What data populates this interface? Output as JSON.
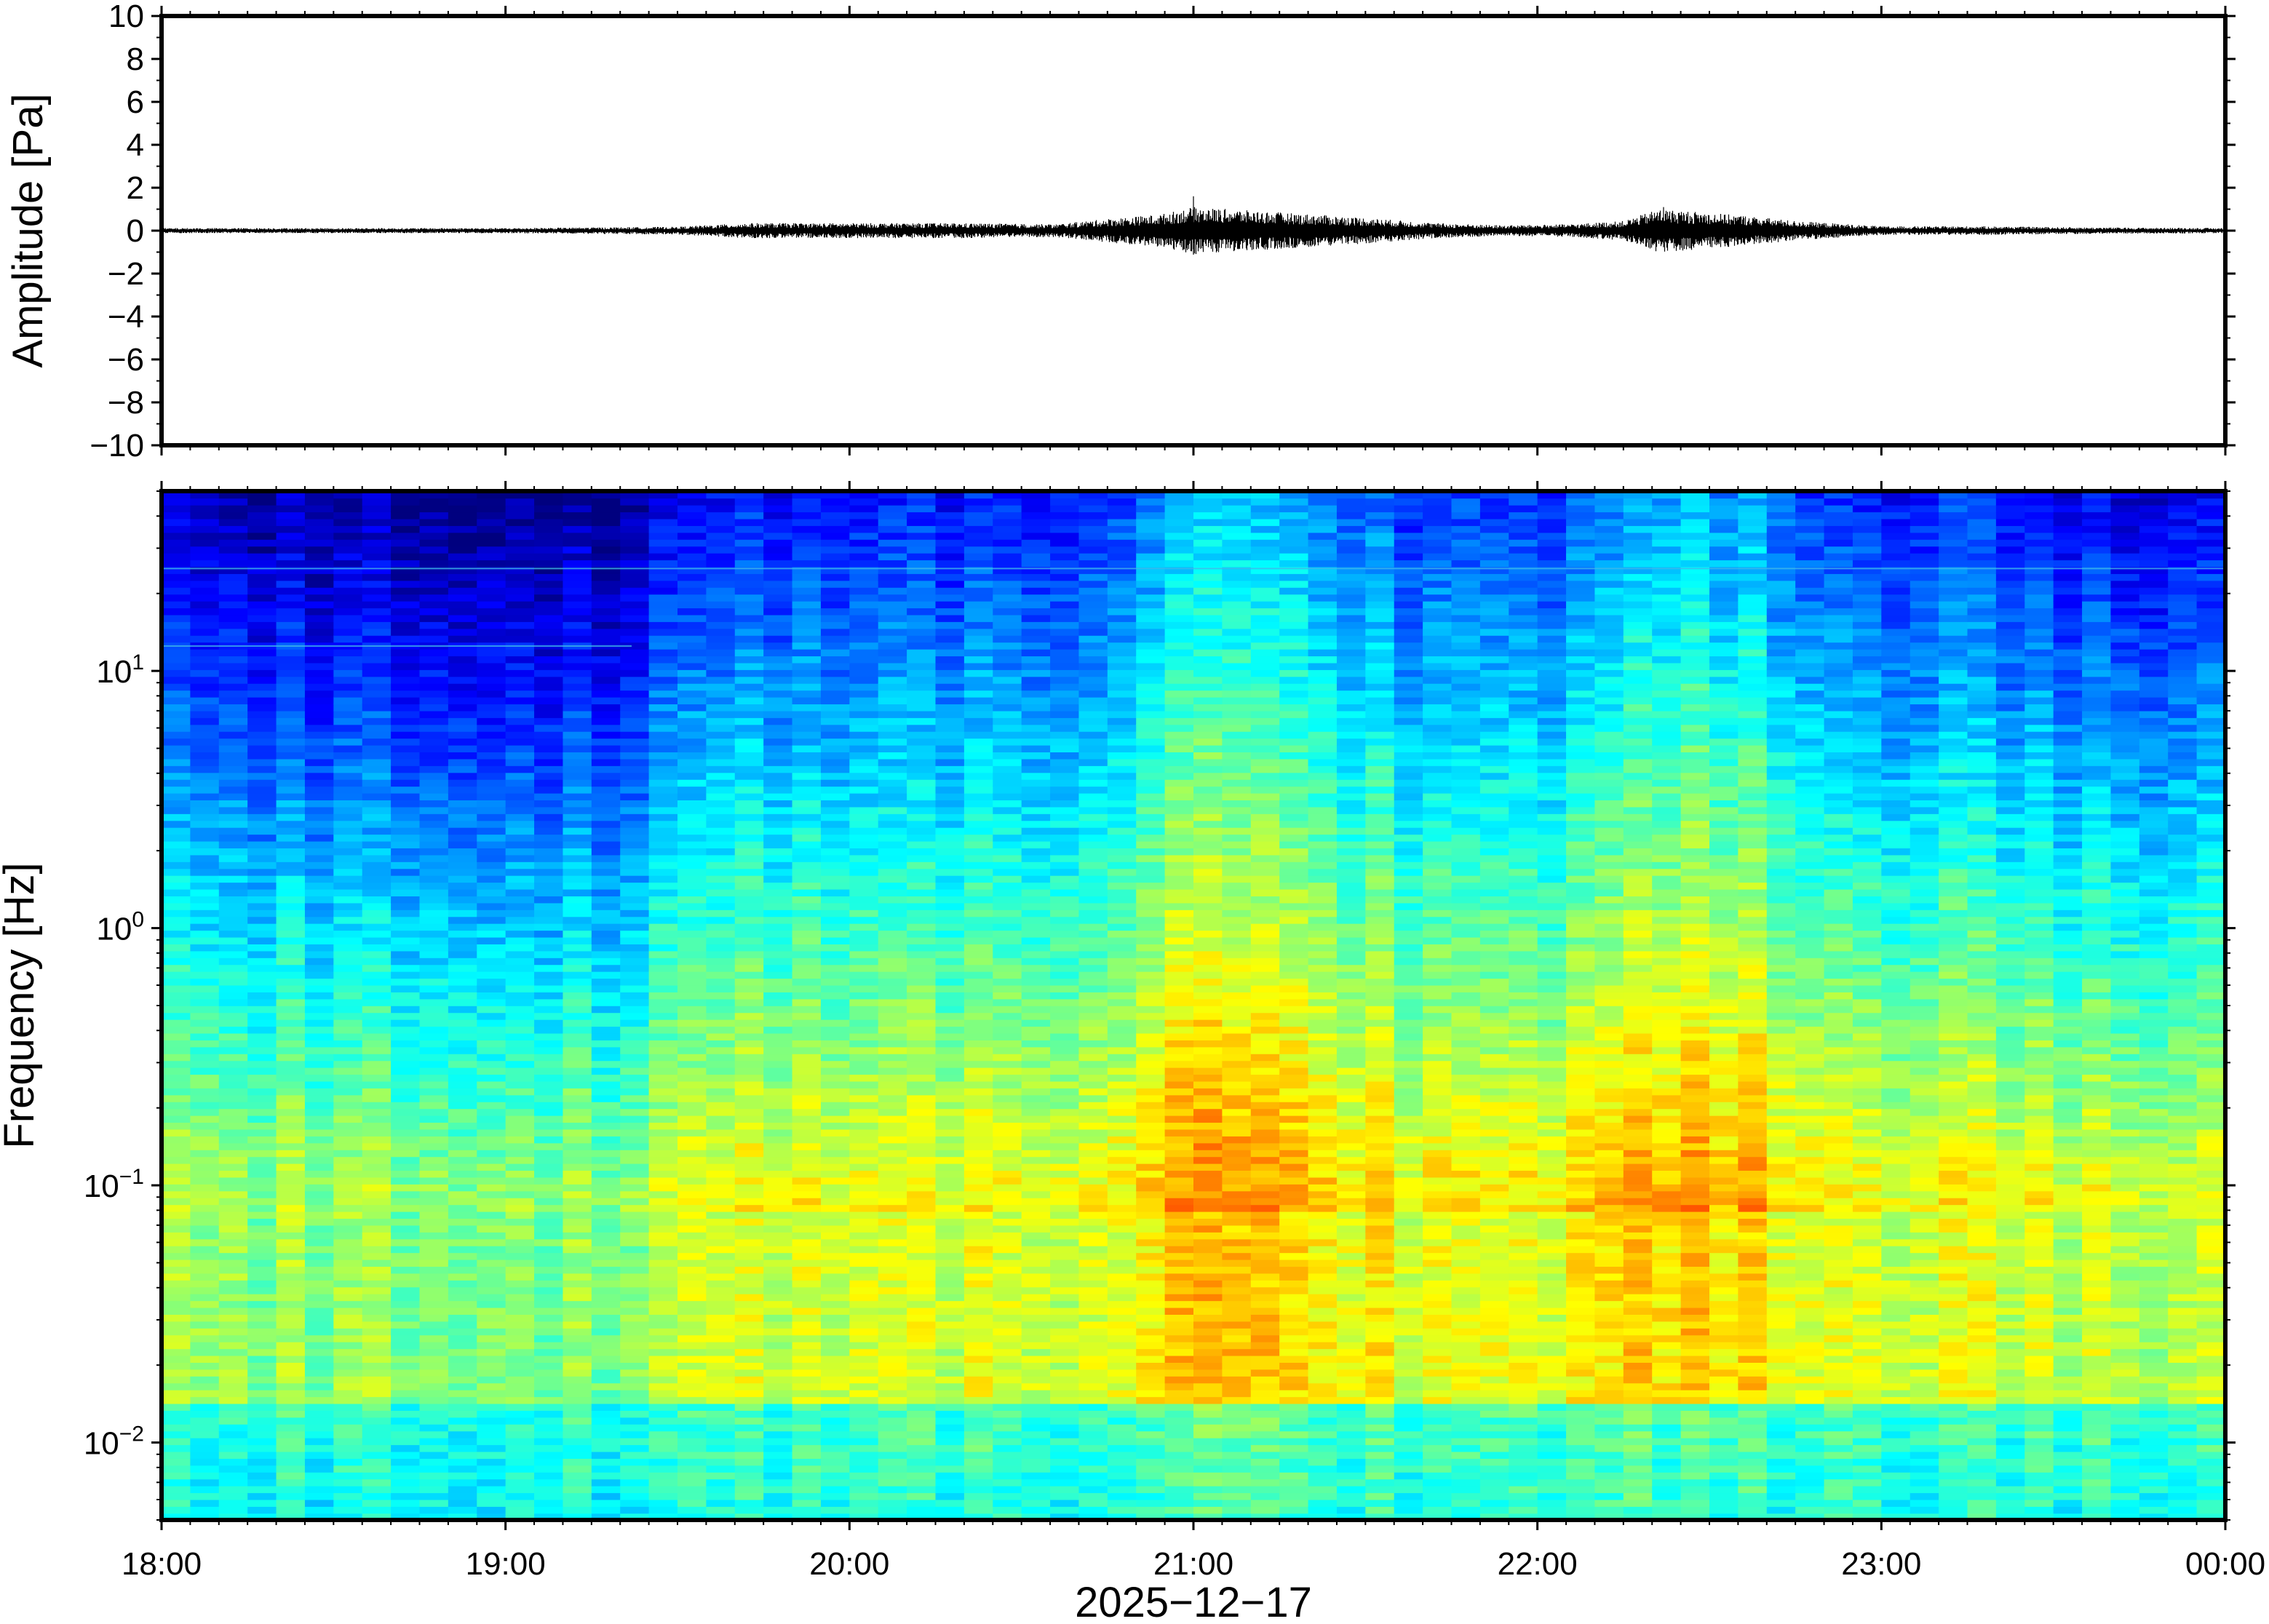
{
  "chart_data": [
    {
      "type": "line",
      "panel": "waveform",
      "ylabel": "Amplitude [Pa]",
      "xlabel": "",
      "ylim": [
        -10,
        10
      ],
      "yticks": [
        10,
        8,
        6,
        4,
        2,
        0,
        -2,
        -4,
        -6,
        -8,
        -10
      ],
      "ytick_labels": [
        "10",
        "8",
        "6",
        "4",
        "2",
        "0",
        "−2",
        "−4",
        "−6",
        "−8",
        "−10"
      ],
      "xlim": [
        "18:00",
        "00:00"
      ],
      "grid": false,
      "line_color": "#000000",
      "envelope": {
        "x_hours": [
          18.0,
          18.5,
          19.0,
          19.5,
          19.7,
          20.0,
          20.3,
          20.6,
          20.75,
          20.9,
          21.0,
          21.1,
          21.2,
          21.35,
          21.5,
          21.7,
          21.9,
          22.1,
          22.25,
          22.35,
          22.45,
          22.6,
          22.75,
          23.0,
          23.3,
          23.6,
          24.0
        ],
        "amplitude": [
          0.12,
          0.12,
          0.12,
          0.18,
          0.35,
          0.35,
          0.35,
          0.3,
          0.55,
          0.75,
          1.1,
          1.0,
          0.9,
          0.75,
          0.6,
          0.35,
          0.25,
          0.3,
          0.45,
          1.0,
          0.9,
          0.7,
          0.45,
          0.2,
          0.2,
          0.15,
          0.12
        ]
      },
      "peaks": [
        {
          "x": "21:00",
          "value": 1.6
        },
        {
          "x": "22:22",
          "value": 1.1
        }
      ]
    },
    {
      "type": "heatmap",
      "panel": "spectrogram",
      "ylabel": "Frequency [Hz]",
      "xlabel": "2025−12−17",
      "yscale": "log",
      "ylim": [
        0.005,
        50
      ],
      "yticks": [
        0.01,
        0.1,
        1,
        10
      ],
      "ytick_labels": [
        {
          "base": "10",
          "exp": "−2"
        },
        {
          "base": "10",
          "exp": "−1"
        },
        {
          "base": "10",
          "exp": "0"
        },
        {
          "base": "10",
          "exp": "1"
        }
      ],
      "xlim": [
        "18:00",
        "00:00"
      ],
      "xticks": [
        "18:00",
        "19:00",
        "20:00",
        "21:00",
        "22:00",
        "23:00",
        "00:00"
      ],
      "colormap": "jet",
      "colormap_stops": [
        "#00007f",
        "#0000ff",
        "#007fff",
        "#00ffff",
        "#7fff7f",
        "#ffff00",
        "#ff7f00",
        "#ff0000"
      ],
      "activity": {
        "x_hours": [
          18.0,
          18.5,
          19.0,
          19.35,
          19.45,
          19.75,
          20.0,
          20.5,
          20.75,
          21.0,
          21.3,
          21.6,
          22.0,
          22.25,
          22.4,
          22.7,
          22.9,
          23.2,
          23.6,
          24.0
        ],
        "level": [
          0.25,
          0.15,
          0.1,
          0.1,
          0.35,
          0.45,
          0.4,
          0.45,
          0.55,
          0.85,
          0.8,
          0.55,
          0.5,
          0.7,
          0.9,
          0.7,
          0.45,
          0.5,
          0.35,
          0.3
        ]
      },
      "annotations": [
        {
          "type": "spectral line",
          "frequency_hz": 25
        },
        {
          "type": "spectral line",
          "frequency_hz": 12.5,
          "x_range": [
            "18:00",
            "19:22"
          ]
        }
      ]
    }
  ]
}
